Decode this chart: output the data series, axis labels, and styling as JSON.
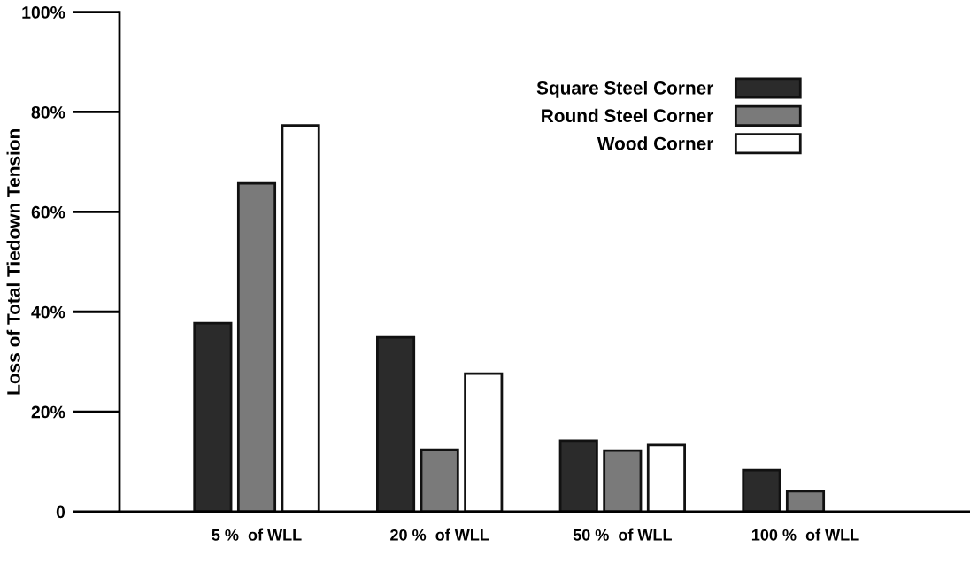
{
  "chart_data": {
    "type": "bar",
    "ylabel": "Loss of Total Tiedown Tension",
    "categories": [
      "5 %  of WLL",
      "20 %  of WLL",
      "50 %  of WLL",
      "100 %  of WLL"
    ],
    "series": [
      {
        "name": "Square Steel Corner",
        "color": "#2b2b2b",
        "values": [
          37.7,
          34.9,
          14.2,
          8.3
        ]
      },
      {
        "name": "Round Steel Corner",
        "color": "#7a7a7a",
        "values": [
          65.7,
          12.4,
          12.2,
          4.1
        ]
      },
      {
        "name": "Wood Corner",
        "color": "#ffffff",
        "values": [
          77.3,
          27.6,
          13.3,
          null
        ]
      }
    ],
    "ylim": [
      0,
      100
    ],
    "yticks": [
      {
        "value": 0,
        "label": "0"
      },
      {
        "value": 20,
        "label": "20%"
      },
      {
        "value": 40,
        "label": "40%"
      },
      {
        "value": 60,
        "label": "60%"
      },
      {
        "value": 80,
        "label": "80%"
      },
      {
        "value": 100,
        "label": "100%"
      }
    ],
    "grid": false,
    "legend": "top right"
  }
}
